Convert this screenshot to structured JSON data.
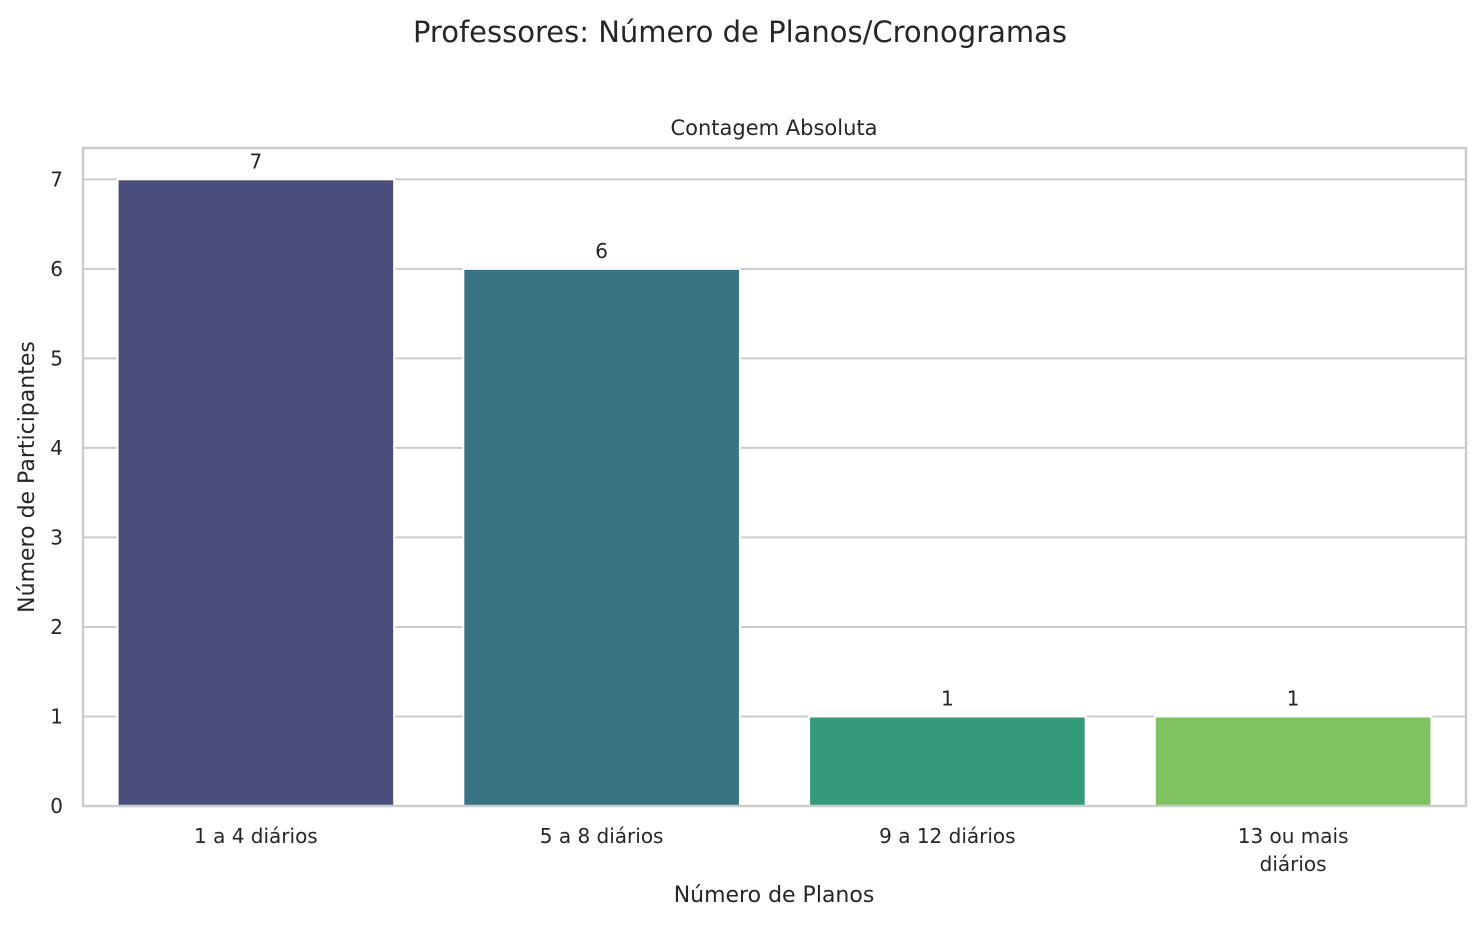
{
  "chart_data": {
    "type": "bar",
    "suptitle": "Professores: Número de Planos/Cronogramas",
    "title": "Contagem Absoluta",
    "xlabel": "Número de Planos",
    "ylabel": "Número de Participantes",
    "categories": [
      [
        "1 a 4 diários"
      ],
      [
        "5 a 8 diários"
      ],
      [
        "9 a 12 diários"
      ],
      [
        "13 ou mais",
        "diários"
      ]
    ],
    "values": [
      7,
      6,
      1,
      1
    ],
    "data_labels": [
      "7",
      "6",
      "1",
      "1"
    ],
    "yticks": [
      0,
      1,
      2,
      3,
      4,
      5,
      6,
      7
    ],
    "ylim": [
      0,
      7.35
    ],
    "grid": true,
    "legend": "none",
    "colors": [
      "#4a4c7c",
      "#377381",
      "#35997b",
      "#80c261"
    ],
    "grid_color": "#cccccc",
    "spine_color": "#cccccc",
    "background": "#ffffff"
  }
}
